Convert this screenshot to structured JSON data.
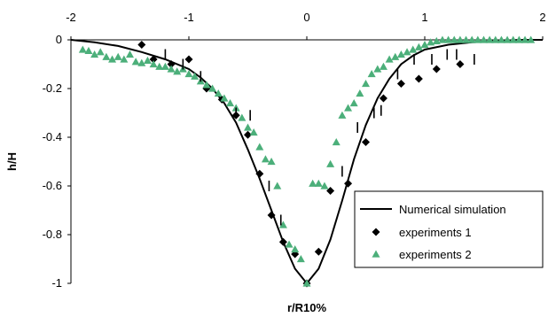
{
  "chart_data": {
    "type": "scatter",
    "xlabel": "r/R10%",
    "ylabel": "h/H",
    "xlim": [
      -2,
      2
    ],
    "ylim": [
      -1,
      0
    ],
    "x_ticks": [
      -2,
      -1,
      0,
      1,
      2
    ],
    "x_tick_labels": [
      "-2",
      "-1",
      "0",
      "1",
      "2"
    ],
    "y_ticks": [
      0,
      -0.2,
      -0.4,
      -0.6,
      -0.8,
      -1
    ],
    "y_tick_labels": [
      "0",
      "-0.2",
      "-0.4",
      "-0.6",
      "-0.8",
      "-1"
    ],
    "x_axis_position": "top",
    "grid": false,
    "legend_position": "bottom-right",
    "series": [
      {
        "name": "Numerical simulation",
        "kind": "line",
        "color": "#000000",
        "x": [
          -2,
          -1.8,
          -1.6,
          -1.4,
          -1.2,
          -1.0,
          -0.9,
          -0.8,
          -0.7,
          -0.6,
          -0.5,
          -0.4,
          -0.3,
          -0.2,
          -0.1,
          0,
          0.1,
          0.2,
          0.3,
          0.4,
          0.5,
          0.6,
          0.7,
          0.8,
          0.9,
          1.0,
          1.2,
          1.4,
          1.6,
          1.8,
          2.0
        ],
        "y": [
          0,
          -0.01,
          -0.025,
          -0.05,
          -0.08,
          -0.12,
          -0.155,
          -0.2,
          -0.26,
          -0.34,
          -0.45,
          -0.57,
          -0.7,
          -0.83,
          -0.94,
          -1.0,
          -0.94,
          -0.82,
          -0.66,
          -0.49,
          -0.35,
          -0.24,
          -0.16,
          -0.1,
          -0.065,
          -0.04,
          -0.02,
          -0.01,
          -0.005,
          0,
          0
        ]
      },
      {
        "name": "experiments 1",
        "kind": "diamond",
        "color": "#000000",
        "x": [
          -1.4,
          -1.3,
          -1.15,
          -1.0,
          -0.85,
          -0.72,
          -0.6,
          -0.5,
          -0.4,
          -0.3,
          -0.2,
          -0.1,
          0,
          0.1,
          0.2,
          0.35,
          0.5,
          0.65,
          0.8,
          0.95,
          1.1,
          1.3
        ],
        "y": [
          -0.02,
          -0.08,
          -0.1,
          -0.08,
          -0.2,
          -0.245,
          -0.31,
          -0.39,
          -0.55,
          -0.72,
          -0.83,
          -0.88,
          -1.0,
          -0.87,
          -0.62,
          -0.59,
          -0.42,
          -0.24,
          -0.18,
          -0.16,
          -0.12,
          -0.1
        ]
      },
      {
        "name": "experiments 2",
        "kind": "triangle",
        "color": "#4caf7a",
        "x": [
          -1.9,
          -1.85,
          -1.8,
          -1.75,
          -1.7,
          -1.65,
          -1.6,
          -1.55,
          -1.5,
          -1.45,
          -1.4,
          -1.35,
          -1.3,
          -1.25,
          -1.2,
          -1.15,
          -1.1,
          -1.05,
          -1.0,
          -0.95,
          -0.9,
          -0.85,
          -0.8,
          -0.75,
          -0.7,
          -0.65,
          -0.6,
          -0.55,
          -0.5,
          -0.45,
          -0.4,
          -0.35,
          -0.3,
          -0.25,
          -0.2,
          -0.15,
          -0.1,
          -0.05,
          0,
          0.05,
          0.1,
          0.15,
          0.2,
          0.25,
          0.3,
          0.35,
          0.4,
          0.45,
          0.5,
          0.55,
          0.6,
          0.65,
          0.7,
          0.75,
          0.8,
          0.85,
          0.9,
          0.95,
          1.0,
          1.05,
          1.1,
          1.15,
          1.2,
          1.25,
          1.3,
          1.35,
          1.4,
          1.45,
          1.5,
          1.55,
          1.6,
          1.65,
          1.7,
          1.75,
          1.8,
          1.85,
          1.9
        ],
        "y": [
          -0.04,
          -0.045,
          -0.06,
          -0.05,
          -0.07,
          -0.08,
          -0.07,
          -0.08,
          -0.06,
          -0.09,
          -0.095,
          -0.085,
          -0.1,
          -0.11,
          -0.11,
          -0.12,
          -0.13,
          -0.12,
          -0.14,
          -0.15,
          -0.17,
          -0.185,
          -0.2,
          -0.22,
          -0.24,
          -0.26,
          -0.28,
          -0.32,
          -0.36,
          -0.38,
          -0.44,
          -0.49,
          -0.5,
          -0.6,
          -0.76,
          -0.84,
          -0.86,
          -0.9,
          -1.0,
          -0.59,
          -0.59,
          -0.6,
          -0.51,
          -0.42,
          -0.31,
          -0.28,
          -0.26,
          -0.22,
          -0.18,
          -0.14,
          -0.12,
          -0.11,
          -0.08,
          -0.07,
          -0.06,
          -0.05,
          -0.04,
          -0.03,
          -0.02,
          -0.01,
          -0.005,
          0,
          0,
          0,
          0,
          0,
          0,
          0,
          0,
          0,
          0,
          0,
          0,
          0,
          0,
          0,
          0
        ]
      },
      {
        "name": "",
        "kind": "vbar",
        "color": "#000000",
        "x": [
          -1.2,
          -1.05,
          -0.9,
          -0.6,
          -0.48,
          -0.32,
          -0.22,
          0.3,
          0.43,
          0.57,
          0.63,
          0.77,
          0.91,
          1.06,
          1.19,
          1.27,
          1.42
        ],
        "y": [
          -0.06,
          -0.1,
          -0.15,
          -0.3,
          -0.31,
          -0.6,
          -0.74,
          -0.54,
          -0.36,
          -0.3,
          -0.29,
          -0.14,
          -0.08,
          -0.08,
          -0.06,
          -0.06,
          -0.08
        ]
      }
    ]
  }
}
